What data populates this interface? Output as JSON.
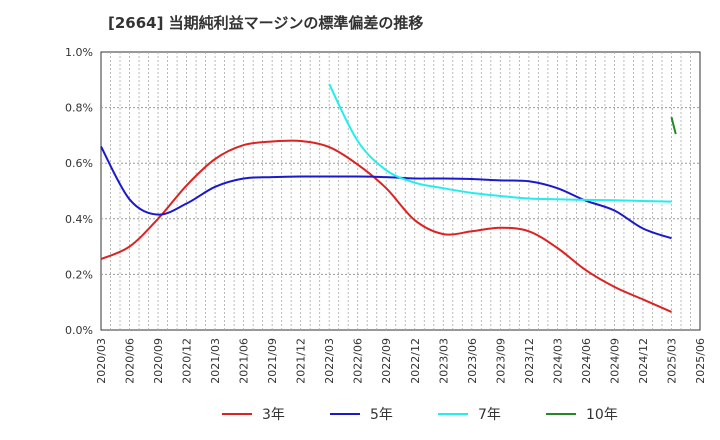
{
  "chart_data": {
    "type": "line",
    "title": "[2664]  当期純利益マージンの標準偏差の推移",
    "xlabel": "",
    "ylabel": "",
    "ylim": [
      0,
      1.0
    ],
    "y_ticks": [
      "0.0%",
      "0.2%",
      "0.4%",
      "0.6%",
      "0.8%",
      "1.0%"
    ],
    "x": [
      "2020/03",
      "2020/06",
      "2020/09",
      "2020/12",
      "2021/03",
      "2021/06",
      "2021/09",
      "2021/12",
      "2022/03",
      "2022/06",
      "2022/09",
      "2022/12",
      "2023/03",
      "2023/06",
      "2023/09",
      "2023/12",
      "2024/03",
      "2024/06",
      "2024/09",
      "2024/12",
      "2025/03",
      "2025/06"
    ],
    "grid": true,
    "legend_position": "bottom",
    "series": [
      {
        "name": "3年",
        "color": "#dd2222",
        "values": [
          0.255,
          0.3,
          0.4,
          0.52,
          0.615,
          0.665,
          0.678,
          0.68,
          0.658,
          0.595,
          0.51,
          0.395,
          0.345,
          0.355,
          0.368,
          0.355,
          0.295,
          0.215,
          0.155,
          0.11,
          0.065,
          null
        ]
      },
      {
        "name": "5年",
        "color": "#1a1acc",
        "values": [
          0.66,
          0.47,
          0.415,
          0.455,
          0.515,
          0.545,
          0.55,
          0.552,
          0.552,
          0.552,
          0.55,
          0.545,
          0.545,
          0.543,
          0.538,
          0.535,
          0.51,
          0.465,
          0.43,
          0.365,
          0.33,
          null
        ]
      },
      {
        "name": "7年",
        "color": "#22eeee",
        "values": [
          null,
          null,
          null,
          null,
          null,
          null,
          null,
          null,
          0.885,
          0.68,
          0.575,
          0.53,
          0.51,
          0.493,
          0.482,
          0.473,
          0.47,
          0.468,
          0.467,
          0.464,
          0.462,
          null
        ]
      },
      {
        "name": "10年",
        "color": "#228822",
        "values": [
          null,
          null,
          null,
          null,
          null,
          null,
          null,
          null,
          null,
          null,
          null,
          null,
          null,
          null,
          null,
          null,
          null,
          null,
          null,
          null,
          0.765,
          null
        ],
        "end_value": 0.705
      }
    ]
  }
}
